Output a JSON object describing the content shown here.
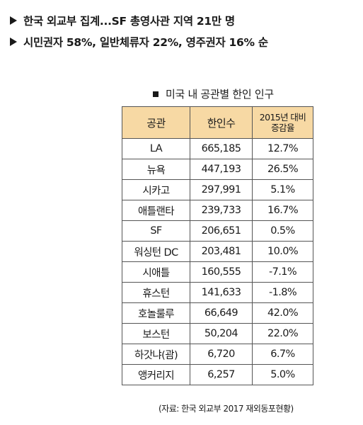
{
  "headlines": [
    "한국 외교부 집계...SF 총영사관 지역 21만 명",
    "시민권자 58%, 일반체류자 22%, 영주권자 16% 순"
  ],
  "table": {
    "title": "미국 내 공관별 한인 인구",
    "headers": {
      "office": "공관",
      "population": "한인수",
      "change_line1": "2015년 대비",
      "change_line2": "증감율"
    },
    "rows": [
      {
        "office": "LA",
        "population": "665,185",
        "change": "12.7%"
      },
      {
        "office": "뉴욕",
        "population": "447,193",
        "change": "26.5%"
      },
      {
        "office": "시카고",
        "population": "297,991",
        "change": "5.1%"
      },
      {
        "office": "애틀랜타",
        "population": "239,733",
        "change": "16.7%"
      },
      {
        "office": "SF",
        "population": "206,651",
        "change": "0.5%"
      },
      {
        "office": "워싱턴 DC",
        "population": "203,481",
        "change": "10.0%"
      },
      {
        "office": "시애틀",
        "population": "160,555",
        "change": "-7.1%"
      },
      {
        "office": "휴스턴",
        "population": "141,633",
        "change": "-1.8%"
      },
      {
        "office": "호놀룰루",
        "population": "66,649",
        "change": "42.0%"
      },
      {
        "office": "보스턴",
        "population": "50,204",
        "change": "22.0%"
      },
      {
        "office": "하갓냐(괌)",
        "population": "6,720",
        "change": "6.7%"
      },
      {
        "office": "앵커리지",
        "population": "6,257",
        "change": "5.0%"
      }
    ]
  },
  "source": "(자료: 한국 외교부 2017 재외동포현황)",
  "colors": {
    "header_bg": "#f7d9a4",
    "border": "#555555",
    "text": "#1a1a1a"
  }
}
